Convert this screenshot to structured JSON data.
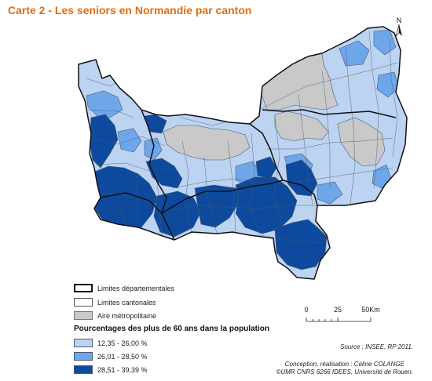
{
  "title": "Carte 2 - Les seniors en Normandie par canton",
  "map": {
    "colors": {
      "class1": "#bcd3f2",
      "class2": "#6ea6ea",
      "class3": "#0d4a9e",
      "metro": "#c9c9c9",
      "canton_border": "#4a5a70",
      "dept_border": "#111111"
    },
    "north_label": "N"
  },
  "legend": {
    "dept_limits": "Limites départementales",
    "canton_limits": "Limites cantonales",
    "metro_area": "Aire métropolitaine",
    "heading": "Pourcentages des plus de 60 ans dans la population",
    "classes": [
      {
        "label": "12,35 - 26,00 %",
        "color": "#bcd3f2"
      },
      {
        "label": "26,01 - 28,50 %",
        "color": "#6ea6ea"
      },
      {
        "label": "28,51 - 39,39 %",
        "color": "#0d4a9e"
      }
    ]
  },
  "scale": {
    "labels": [
      "0",
      "25",
      "50Km"
    ]
  },
  "source": "Source : INSEE, RP 2011.",
  "credits": {
    "line1": "Conception, réalisation : Céline COLANGE",
    "line2": "©UMR CNRS 6266 IDEES, Université de Rouen."
  }
}
